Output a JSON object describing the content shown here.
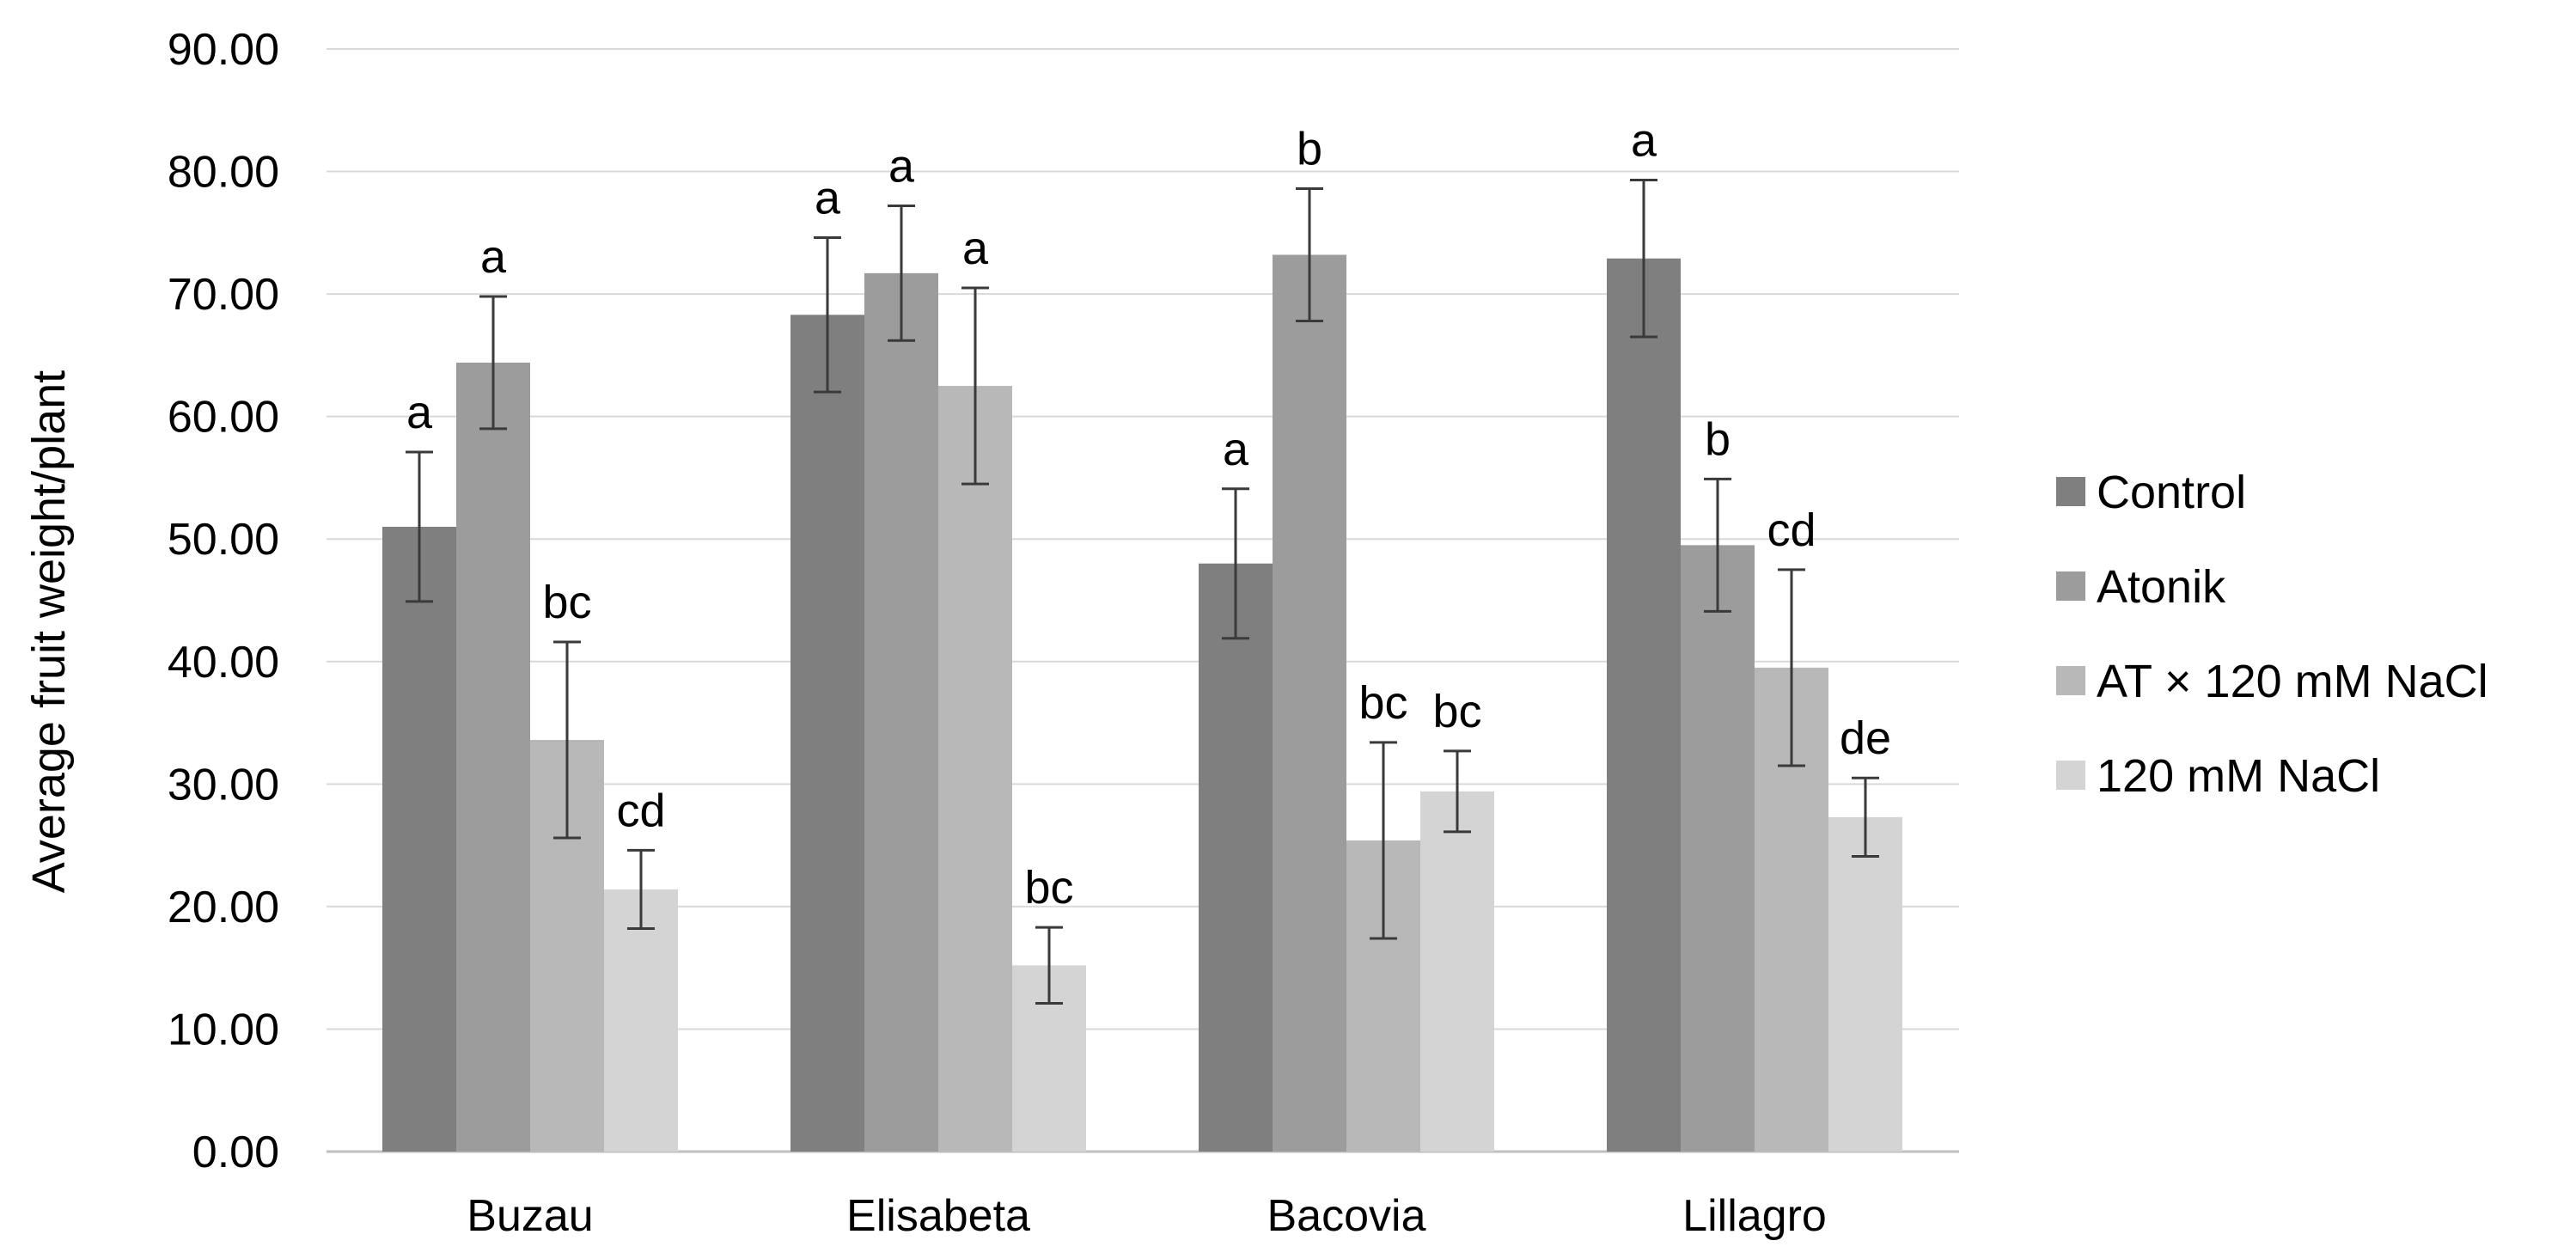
{
  "chart_data": {
    "type": "bar",
    "title": "",
    "xlabel": "",
    "ylabel": "Average fruit weight/plant",
    "ylim": [
      0,
      90
    ],
    "ytick_values": [
      0,
      10,
      20,
      30,
      40,
      50,
      60,
      70,
      80,
      90
    ],
    "ytick_labels": [
      "0.00",
      "10.00",
      "20.00",
      "30.00",
      "40.00",
      "50.00",
      "60.00",
      "70.00",
      "80.00",
      "90.00"
    ],
    "grid": true,
    "legend_position": "right",
    "categories": [
      "Buzau",
      "Elisabeta",
      "Bacovia",
      "Lillagro"
    ],
    "series": [
      {
        "name": "Control",
        "color": "#7f7f7f",
        "values": [
          51.0,
          68.3,
          48.0,
          72.9
        ],
        "errors": [
          6.1,
          6.3,
          6.1,
          6.4
        ],
        "labels": [
          "a",
          "a",
          "a",
          "a"
        ]
      },
      {
        "name": "Atonik",
        "color": "#9c9c9c",
        "values": [
          64.4,
          71.7,
          73.2,
          49.5
        ],
        "errors": [
          5.4,
          5.5,
          5.4,
          5.4
        ],
        "labels": [
          "a",
          "a",
          "b",
          "b"
        ]
      },
      {
        "name": "AT × 120 mM NaCl",
        "color": "#b8b8b8",
        "values": [
          33.6,
          62.5,
          25.4,
          39.5
        ],
        "errors": [
          8.0,
          8.0,
          8.0,
          8.0
        ],
        "labels": [
          "bc",
          "a",
          "bc",
          "cd"
        ]
      },
      {
        "name": "120 mM NaCl",
        "color": "#d4d4d4",
        "values": [
          21.4,
          15.2,
          29.4,
          27.3
        ],
        "errors": [
          3.2,
          3.1,
          3.3,
          3.2
        ],
        "labels": [
          "cd",
          "bc",
          "bc",
          "de"
        ]
      }
    ]
  }
}
